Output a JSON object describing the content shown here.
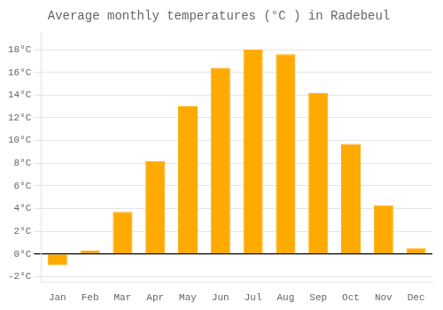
{
  "chart_data": {
    "type": "bar",
    "title": "Average monthly temperatures (°C ) in Radebeul",
    "categories": [
      "Jan",
      "Feb",
      "Mar",
      "Apr",
      "May",
      "Jun",
      "Jul",
      "Aug",
      "Sep",
      "Oct",
      "Nov",
      "Dec"
    ],
    "values": [
      -1.0,
      0.3,
      3.7,
      8.2,
      13.0,
      16.4,
      18.0,
      17.6,
      14.2,
      9.7,
      4.3,
      0.5
    ],
    "color": "#FFAA00",
    "ylim": [
      -2.5,
      19.5
    ],
    "yticks": [
      {
        "value": -2,
        "label": "-2°C"
      },
      {
        "value": 0,
        "label": "0°C"
      },
      {
        "value": 2,
        "label": "2°C"
      },
      {
        "value": 4,
        "label": "4°C"
      },
      {
        "value": 6,
        "label": "6°C"
      },
      {
        "value": 8,
        "label": "8°C"
      },
      {
        "value": 10,
        "label": "10°C"
      },
      {
        "value": 12,
        "label": "12°C"
      },
      {
        "value": 14,
        "label": "14°C"
      },
      {
        "value": 16,
        "label": "16°C"
      },
      {
        "value": 18,
        "label": "18°C"
      }
    ],
    "grid": true
  }
}
